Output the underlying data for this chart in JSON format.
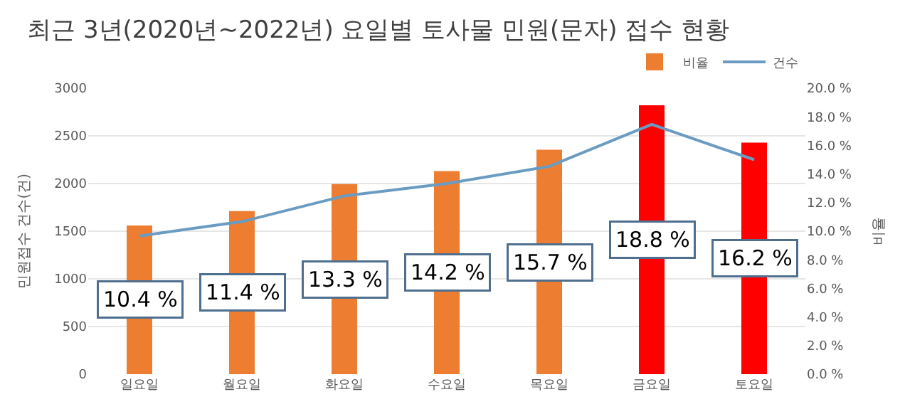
{
  "chart_data": {
    "type": "bar",
    "title": "최근 3년(2020년~2022년) 요일별 토사물 민원(문자) 접수 현황",
    "ylabel": "민원접수 건수(건)",
    "y2label": "비율",
    "categories": [
      "일요일",
      "월요일",
      "화요일",
      "수요일",
      "목요일",
      "금요일",
      "토요일"
    ],
    "series": [
      {
        "name": "비율",
        "axis": "y2",
        "colors": [
          "#ed7d31",
          "#ed7d31",
          "#ed7d31",
          "#ed7d31",
          "#ed7d31",
          "#ff0000",
          "#ff0000"
        ],
        "values": [
          10.4,
          11.4,
          13.3,
          14.2,
          15.7,
          18.8,
          16.2
        ],
        "value_labels": [
          "10.4 %",
          "11.4 %",
          "13.3 %",
          "14.2 %",
          "15.7 %",
          "18.8 %",
          "16.2 %"
        ]
      },
      {
        "name": "건수",
        "type": "line",
        "color": "#6a9cc3",
        "values": [
          1450,
          1600,
          1870,
          2000,
          2180,
          2620,
          2250
        ]
      }
    ],
    "ylim": [
      0,
      3000
    ],
    "yticks": [
      0,
      500,
      1000,
      1500,
      2000,
      2500,
      3000
    ],
    "y2lim": [
      0,
      20
    ],
    "y2ticks": [
      {
        "value": 0,
        "label": "0.0 %"
      },
      {
        "value": 2,
        "label": "2.0 %"
      },
      {
        "value": 4,
        "label": "4.0 %"
      },
      {
        "value": 6,
        "label": "6.0 %"
      },
      {
        "value": 8,
        "label": "8.0 %"
      },
      {
        "value": 10,
        "label": "10.0 %"
      },
      {
        "value": 12,
        "label": "12.0 %"
      },
      {
        "value": 14,
        "label": "14.0 %"
      },
      {
        "value": 16,
        "label": "16.0 %"
      },
      {
        "value": 18,
        "label": "18.0 %"
      },
      {
        "value": 20,
        "label": "20.0 %"
      }
    ],
    "grid": "y",
    "legend": "top right"
  }
}
